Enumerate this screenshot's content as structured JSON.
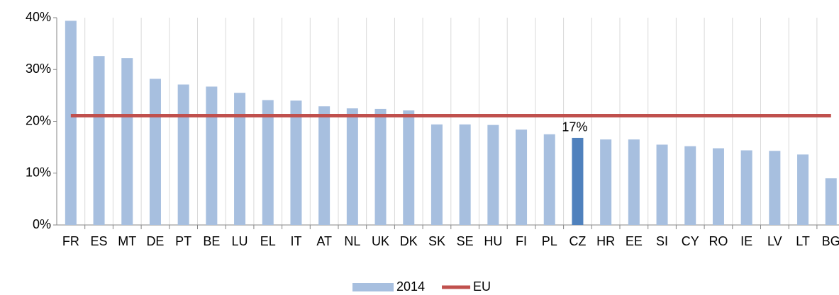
{
  "chart_data": {
    "type": "bar",
    "categories": [
      "FR",
      "ES",
      "MT",
      "DE",
      "PT",
      "BE",
      "LU",
      "EL",
      "IT",
      "AT",
      "NL",
      "UK",
      "DK",
      "SK",
      "SE",
      "HU",
      "FI",
      "PL",
      "CZ",
      "HR",
      "EE",
      "SI",
      "CY",
      "RO",
      "IE",
      "LV",
      "LT",
      "BG"
    ],
    "series": [
      {
        "name": "2014",
        "type": "bar",
        "color": "#a7bfdf",
        "colors": [
          "#a7bfdf",
          "#a7bfdf",
          "#a7bfdf",
          "#a7bfdf",
          "#a7bfdf",
          "#a7bfdf",
          "#a7bfdf",
          "#a7bfdf",
          "#a7bfdf",
          "#a7bfdf",
          "#a7bfdf",
          "#a7bfdf",
          "#a7bfdf",
          "#a7bfdf",
          "#a7bfdf",
          "#a7bfdf",
          "#a7bfdf",
          "#a7bfdf",
          "#4f81bd",
          "#a7bfdf",
          "#a7bfdf",
          "#a7bfdf",
          "#a7bfdf",
          "#a7bfdf",
          "#a7bfdf",
          "#a7bfdf",
          "#a7bfdf",
          "#a7bfdf"
        ],
        "values": [
          39.4,
          32.6,
          32.2,
          28.2,
          27.1,
          26.7,
          25.5,
          24.1,
          24.0,
          22.9,
          22.5,
          22.4,
          22.1,
          19.4,
          19.4,
          19.3,
          18.4,
          17.5,
          16.8,
          16.5,
          16.5,
          15.5,
          15.2,
          14.8,
          14.4,
          14.3,
          13.6,
          9.0
        ],
        "value_labels": [
          null,
          null,
          null,
          null,
          null,
          null,
          null,
          null,
          null,
          null,
          null,
          null,
          null,
          null,
          null,
          null,
          null,
          null,
          "17%",
          null,
          null,
          null,
          null,
          null,
          null,
          null,
          null,
          null
        ]
      },
      {
        "name": "EU",
        "type": "line",
        "color": "#c0504d",
        "values": [
          21.1,
          21.1,
          21.1,
          21.1,
          21.1,
          21.1,
          21.1,
          21.1,
          21.1,
          21.1,
          21.1,
          21.1,
          21.1,
          21.1,
          21.1,
          21.1,
          21.1,
          21.1,
          21.1,
          21.1,
          21.1,
          21.1,
          21.1,
          21.1,
          21.1,
          21.1,
          21.1,
          21.1
        ]
      }
    ],
    "ylim": [
      0,
      40
    ],
    "yticks": [
      {
        "value": 0,
        "label": "0%"
      },
      {
        "value": 10,
        "label": "10%"
      },
      {
        "value": 20,
        "label": "20%"
      },
      {
        "value": 30,
        "label": "30%"
      },
      {
        "value": 40,
        "label": "40%"
      }
    ],
    "legend": "bottom"
  }
}
